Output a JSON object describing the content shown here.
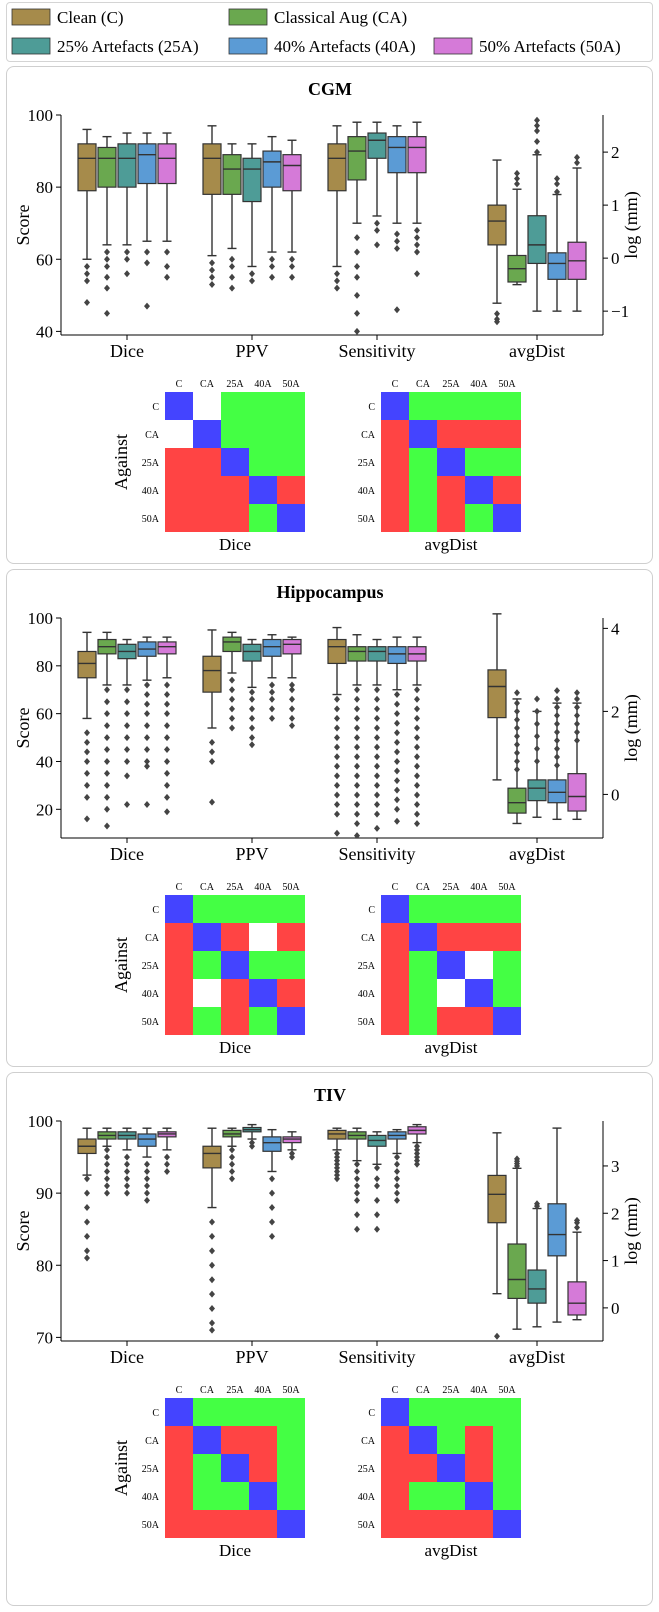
{
  "legend": [
    {
      "label": "Clean (C)",
      "color": "#A68B4B"
    },
    {
      "label": "Classical Aug (CA)",
      "color": "#6AA84F"
    },
    {
      "label": "25% Artefacts (25A)",
      "color": "#4E9C97"
    },
    {
      "label": "40% Artefacts (40A)",
      "color": "#5B9BD5"
    },
    {
      "label": "50% Artefacts (50A)",
      "color": "#D57AD8"
    }
  ],
  "chart_data": [
    {
      "type": "box",
      "title": "CGM",
      "ylabel": "Score",
      "ylabel_right": "log (mm)",
      "ylim": [
        39,
        100
      ],
      "yticks": [
        40,
        60,
        80,
        100
      ],
      "ylim_right": [
        -1.45,
        2.7
      ],
      "yticks_right": [
        -1,
        0,
        1,
        2
      ],
      "categories": [
        "Dice",
        "PPV",
        "Sensitivity",
        "avgDist"
      ],
      "boxes": [
        [
          [
            60,
            79,
            88,
            92,
            96,
            [
              58,
              56,
              54,
              48
            ]
          ],
          [
            64,
            80,
            88,
            91,
            94,
            [
              62,
              60,
              58,
              55,
              52,
              45
            ]
          ],
          [
            64,
            80,
            88,
            92,
            95,
            [
              62,
              60,
              56
            ]
          ],
          [
            65,
            81,
            89,
            92,
            95,
            [
              62,
              59,
              47
            ]
          ],
          [
            65,
            81,
            88,
            92,
            95,
            [
              62,
              58,
              55
            ]
          ]
        ],
        [
          [
            61,
            78,
            88,
            92,
            97,
            [
              59,
              57,
              55,
              53
            ]
          ],
          [
            63,
            78,
            85,
            89,
            92,
            [
              60,
              58,
              55,
              52
            ]
          ],
          [
            58,
            76,
            85,
            88,
            92,
            [
              56,
              54
            ]
          ],
          [
            62,
            80,
            87,
            90,
            94,
            [
              60,
              58,
              55
            ]
          ],
          [
            62,
            79,
            86,
            89,
            93,
            [
              60,
              58,
              55
            ]
          ]
        ],
        [
          [
            58,
            79,
            88,
            92,
            97,
            [
              56,
              54,
              52
            ]
          ],
          [
            70,
            82,
            90,
            94,
            98,
            [
              66,
              62,
              58,
              55,
              50,
              45,
              40
            ]
          ],
          [
            72,
            88,
            93,
            95,
            98,
            [
              70,
              68,
              64
            ]
          ],
          [
            70,
            84,
            91,
            94,
            97,
            [
              67,
              65,
              63,
              46
            ]
          ],
          [
            70,
            84,
            91,
            94,
            98,
            [
              68,
              66,
              64,
              62,
              56
            ]
          ]
        ],
        [
          [
            -0.85,
            0.25,
            0.7,
            1.0,
            1.85,
            [
              -1.05,
              -1.15,
              -1.2
            ]
          ],
          [
            -0.5,
            -0.45,
            -0.2,
            0.05,
            1.3,
            [
              1.4,
              1.5,
              1.6
            ]
          ],
          [
            -1.0,
            -0.1,
            0.25,
            0.8,
            1.95,
            [
              2.0,
              2.2,
              2.4,
              2.5,
              2.6
            ]
          ],
          [
            -1.0,
            -0.4,
            -0.1,
            0.1,
            1.2,
            [
              1.25,
              1.4,
              1.5
            ]
          ],
          [
            -1.0,
            -0.4,
            -0.05,
            0.3,
            1.7,
            [
              1.8,
              1.9
            ]
          ]
        ]
      ],
      "heatmaps": [
        {
          "xlabel": "Dice",
          "cells": [
            "BWGGG",
            "WBGGG",
            "RRBGG",
            "RRRBR",
            "RRRGB"
          ]
        },
        {
          "xlabel": "avgDist",
          "cells": [
            "BGGGG",
            "RBRRR",
            "RGBGG",
            "RGRBR",
            "RGRGB"
          ]
        }
      ]
    },
    {
      "type": "box",
      "title": "Hippocampus",
      "ylabel": "Score",
      "ylabel_right": "log (mm)",
      "ylim": [
        8,
        100
      ],
      "yticks": [
        20,
        40,
        60,
        80,
        100
      ],
      "ylim_right": [
        -1.05,
        4.25
      ],
      "yticks_right": [
        0,
        2,
        4
      ],
      "categories": [
        "Dice",
        "PPV",
        "Sensitivity",
        "avgDist"
      ],
      "boxes": [
        [
          [
            58,
            75,
            81,
            86,
            94,
            [
              52,
              48,
              44,
              40,
              35,
              30,
              25,
              16
            ]
          ],
          [
            72,
            85,
            88,
            91,
            94,
            [
              70,
              65,
              60,
              55,
              50,
              45,
              40,
              35,
              30,
              25,
              20,
              13
            ]
          ],
          [
            72,
            83,
            86,
            89,
            91,
            [
              70,
              65,
              60,
              55,
              50,
              45,
              40,
              34,
              22
            ]
          ],
          [
            74,
            84,
            87,
            90,
            92,
            [
              72,
              68,
              64,
              60,
              55,
              50,
              45,
              40,
              38,
              22
            ]
          ],
          [
            75,
            85,
            88,
            90,
            92,
            [
              72,
              68,
              64,
              60,
              55,
              50,
              45,
              40,
              35,
              30,
              25,
              19
            ]
          ]
        ],
        [
          [
            54,
            69,
            78,
            84,
            95,
            [
              48,
              44,
              40,
              23
            ]
          ],
          [
            77,
            86,
            90,
            92,
            94,
            [
              74,
              70,
              66,
              62,
              58,
              54
            ]
          ],
          [
            71,
            82,
            86,
            89,
            91,
            [
              69,
              66,
              62,
              58,
              54,
              50,
              47
            ]
          ],
          [
            75,
            84,
            88,
            91,
            93,
            [
              72,
              69,
              66,
              62,
              58
            ]
          ],
          [
            75,
            85,
            89,
            91,
            92,
            [
              72,
              70,
              66,
              62,
              58,
              55
            ]
          ]
        ],
        [
          [
            68,
            81,
            88,
            91,
            96,
            [
              66,
              62,
              58,
              54,
              50,
              46,
              42,
              38,
              34,
              30,
              26,
              22,
              18,
              10
            ]
          ],
          [
            72,
            82,
            86,
            88,
            93,
            [
              70,
              66,
              62,
              58,
              54,
              50,
              46,
              42,
              38,
              34,
              30,
              26,
              22,
              18,
              14,
              9
            ]
          ],
          [
            72,
            82,
            86,
            88,
            91,
            [
              70,
              66,
              62,
              58,
              54,
              50,
              46,
              42,
              38,
              34,
              30,
              26,
              22,
              18,
              12
            ]
          ],
          [
            70,
            81,
            85,
            88,
            92,
            [
              68,
              64,
              60,
              56,
              52,
              48,
              44,
              40,
              36,
              32,
              28,
              24,
              20,
              15
            ]
          ],
          [
            72,
            82,
            85,
            88,
            92,
            [
              70,
              66,
              62,
              58,
              54,
              50,
              46,
              42,
              38,
              34,
              30,
              26,
              22,
              18,
              14
            ]
          ]
        ],
        [
          [
            0.35,
            1.85,
            2.6,
            3.0,
            4.35,
            []
          ],
          [
            -0.7,
            -0.45,
            -0.2,
            0.15,
            2.3,
            [
              2.45,
              2.2,
              2.0,
              1.8,
              1.6,
              1.4,
              1.2,
              1.0,
              0.8,
              0.6
            ]
          ],
          [
            -0.55,
            -0.15,
            0.15,
            0.35,
            2.0,
            [
              2.3,
              2.0,
              1.7,
              1.4,
              1.1,
              0.8
            ]
          ],
          [
            -0.6,
            -0.2,
            0.05,
            0.35,
            2.2,
            [
              2.5,
              2.3,
              2.1,
              1.9,
              1.7,
              1.5,
              1.3,
              1.1,
              0.9,
              0.7
            ]
          ],
          [
            -0.6,
            -0.4,
            -0.05,
            0.5,
            2.2,
            [
              2.45,
              2.3,
              2.1,
              1.9,
              1.7,
              1.5,
              1.3
            ]
          ]
        ]
      ],
      "heatmaps": [
        {
          "xlabel": "Dice",
          "cells": [
            "BGGGG",
            "RBRWR",
            "RGBGG",
            "RWRBR",
            "RGRGB"
          ]
        },
        {
          "xlabel": "avgDist",
          "cells": [
            "BGGGG",
            "RBRRR",
            "RGBWG",
            "RGWBG",
            "RGRRB"
          ]
        }
      ]
    },
    {
      "type": "box",
      "title": "TIV",
      "ylabel": "Score",
      "ylabel_right": "log (mm)",
      "ylim": [
        69.5,
        100
      ],
      "yticks": [
        70,
        80,
        90,
        100
      ],
      "ylim_right": [
        -0.7,
        3.95
      ],
      "yticks_right": [
        0,
        1,
        2,
        3
      ],
      "categories": [
        "Dice",
        "PPV",
        "Sensitivity",
        "avgDist"
      ],
      "boxes": [
        [
          [
            92.5,
            95.5,
            96.5,
            97.5,
            99,
            [
              92,
              90,
              88,
              86,
              84,
              82,
              81
            ]
          ],
          [
            96.5,
            97.5,
            98,
            98.5,
            99,
            [
              96,
              95,
              94,
              93,
              92,
              91,
              90
            ]
          ],
          [
            96,
            97.5,
            98,
            98.5,
            99,
            [
              95,
              94,
              93,
              92,
              91,
              90
            ]
          ],
          [
            95,
            96.5,
            97.5,
            98.2,
            99,
            [
              94,
              93,
              92,
              91,
              90,
              89
            ]
          ],
          [
            96,
            97.8,
            98.2,
            98.5,
            99,
            [
              95,
              94,
              93
            ]
          ]
        ],
        [
          [
            88,
            93.5,
            95.5,
            96.5,
            99,
            [
              86,
              84,
              82,
              80,
              78,
              76,
              74,
              72,
              71
            ]
          ],
          [
            96.5,
            97.8,
            98.2,
            98.7,
            99,
            [
              96,
              95,
              94,
              93,
              92
            ]
          ],
          [
            97.5,
            98.5,
            98.8,
            99.1,
            99.5,
            [
              97,
              96.5
            ]
          ],
          [
            93,
            95.8,
            97,
            97.8,
            98.8,
            [
              92,
              90,
              88,
              86,
              84
            ]
          ],
          [
            96,
            97,
            97.5,
            97.8,
            98.5,
            [
              95.5,
              95
            ]
          ]
        ],
        [
          [
            96,
            97.5,
            98.2,
            98.7,
            99,
            [
              95.5,
              95,
              94.5,
              94,
              93.5,
              93,
              92.5,
              92
            ]
          ],
          [
            94.5,
            97.5,
            98,
            98.5,
            99,
            [
              94,
              93,
              92,
              91,
              90,
              89,
              87,
              85
            ]
          ],
          [
            94,
            96.5,
            97.3,
            98,
            98.5,
            [
              93.5,
              92,
              91,
              89,
              87,
              85
            ]
          ],
          [
            95.5,
            97.5,
            98,
            98.5,
            98.8,
            [
              95,
              94,
              93,
              92,
              91,
              90,
              89
            ]
          ],
          [
            97,
            98.2,
            98.7,
            99.2,
            99.5,
            [
              96.5,
              96,
              95.5,
              95,
              94.5,
              94
            ]
          ]
        ],
        [
          [
            0.3,
            1.8,
            2.4,
            2.8,
            3.7,
            [
              -0.6
            ]
          ],
          [
            -0.45,
            0.2,
            0.6,
            1.35,
            2.95,
            [
              3.0,
              3.05,
              3.1,
              3.15
            ]
          ],
          [
            -0.4,
            0.1,
            0.4,
            0.8,
            2.1,
            [
              2.15,
              2.2
            ]
          ],
          [
            -0.3,
            1.1,
            1.55,
            2.2,
            3.8,
            []
          ],
          [
            -0.25,
            -0.15,
            0.1,
            0.55,
            1.6,
            [
              1.7,
              1.8,
              1.85
            ]
          ]
        ]
      ],
      "heatmaps": [
        {
          "xlabel": "Dice",
          "cells": [
            "BGGGG",
            "RBRRG",
            "RGBRG",
            "RGGBG",
            "RRRRB"
          ]
        },
        {
          "xlabel": "avgDist",
          "cells": [
            "BGGGG",
            "RBGRG",
            "RRBRG",
            "RGGBG",
            "RRRRB"
          ]
        }
      ]
    }
  ],
  "heatmap_labels": [
    "C",
    "CA",
    "25A",
    "40A",
    "50A"
  ],
  "heatmap_ylabel": "Against",
  "heatmap_colors": {
    "R": "#FF4444",
    "G": "#44FF44",
    "B": "#4444FF",
    "W": "#FFFFFF"
  }
}
